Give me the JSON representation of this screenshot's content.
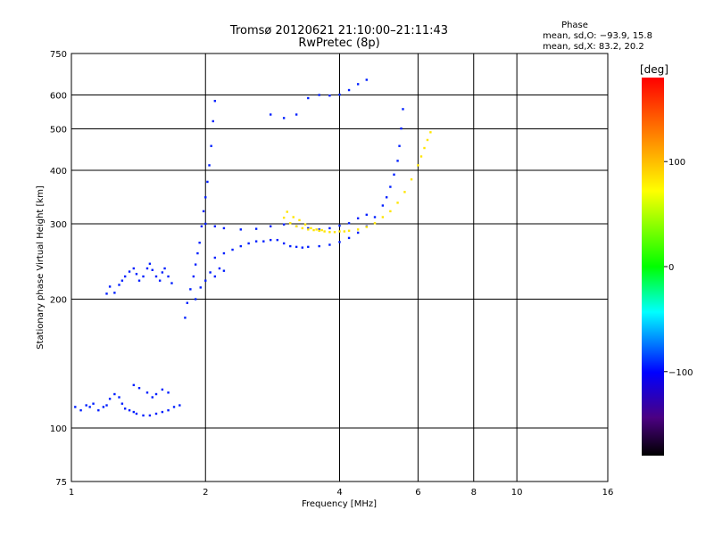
{
  "chart_data": {
    "type": "scatter",
    "title": "Tromsø 20120621 21:10:00–21:11:43",
    "subtitle": "RwPretec (8p)",
    "stats": {
      "heading": "Phase",
      "line1": "mean, sd,O: −93.9, 15.8",
      "line2": "mean, sd,X: 83.2, 20.2"
    },
    "xlabel": "Frequency [MHz]",
    "ylabel": "Stationary phase Virtual Height [km]",
    "x_scale": "log",
    "y_scale": "log",
    "xlim": [
      1,
      16
    ],
    "ylim": [
      75,
      750
    ],
    "x_ticks": [
      1,
      2,
      4,
      6,
      8,
      10,
      16
    ],
    "x_tick_labels": [
      "1",
      "2",
      "4",
      "6",
      "8",
      "10",
      "16"
    ],
    "x_gridlines": [
      2,
      4,
      6,
      8,
      10
    ],
    "y_ticks": [
      75,
      100,
      200,
      300,
      400,
      500,
      600,
      750
    ],
    "y_tick_labels": [
      "75",
      "100",
      "200",
      "300",
      "400",
      "500",
      "600",
      "750"
    ],
    "y_gridlines": [
      100,
      200,
      300,
      400,
      500,
      600
    ],
    "colorbar": {
      "label": "[deg]",
      "range": [
        -180,
        180
      ],
      "ticks": [
        -100,
        0,
        100
      ],
      "tick_labels": [
        "−100",
        "0",
        "100"
      ]
    },
    "series": [
      {
        "name": "O",
        "mean_phase": -93.9,
        "points": [
          [
            1.02,
            112
          ],
          [
            1.05,
            110
          ],
          [
            1.08,
            113
          ],
          [
            1.1,
            112
          ],
          [
            1.12,
            114
          ],
          [
            1.15,
            110
          ],
          [
            1.18,
            112
          ],
          [
            1.2,
            113
          ],
          [
            1.22,
            117
          ],
          [
            1.25,
            120
          ],
          [
            1.28,
            118
          ],
          [
            1.3,
            114
          ],
          [
            1.32,
            111
          ],
          [
            1.35,
            110
          ],
          [
            1.38,
            109
          ],
          [
            1.4,
            108
          ],
          [
            1.45,
            107
          ],
          [
            1.5,
            107
          ],
          [
            1.55,
            108
          ],
          [
            1.6,
            109
          ],
          [
            1.65,
            110
          ],
          [
            1.7,
            112
          ],
          [
            1.75,
            113
          ],
          [
            1.38,
            126
          ],
          [
            1.42,
            124
          ],
          [
            1.48,
            121
          ],
          [
            1.52,
            118
          ],
          [
            1.55,
            120
          ],
          [
            1.6,
            123
          ],
          [
            1.65,
            121
          ],
          [
            1.2,
            206
          ],
          [
            1.22,
            214
          ],
          [
            1.25,
            207
          ],
          [
            1.28,
            216
          ],
          [
            1.3,
            221
          ],
          [
            1.32,
            226
          ],
          [
            1.35,
            232
          ],
          [
            1.38,
            236
          ],
          [
            1.4,
            229
          ],
          [
            1.42,
            221
          ],
          [
            1.45,
            226
          ],
          [
            1.48,
            236
          ],
          [
            1.5,
            242
          ],
          [
            1.52,
            234
          ],
          [
            1.55,
            226
          ],
          [
            1.58,
            221
          ],
          [
            1.6,
            231
          ],
          [
            1.62,
            236
          ],
          [
            1.65,
            226
          ],
          [
            1.68,
            218
          ],
          [
            1.8,
            181
          ],
          [
            1.82,
            196
          ],
          [
            1.85,
            211
          ],
          [
            1.88,
            226
          ],
          [
            1.9,
            241
          ],
          [
            1.92,
            256
          ],
          [
            1.94,
            271
          ],
          [
            1.96,
            296
          ],
          [
            1.98,
            321
          ],
          [
            2.0,
            346
          ],
          [
            2.02,
            376
          ],
          [
            2.04,
            411
          ],
          [
            2.06,
            456
          ],
          [
            2.08,
            521
          ],
          [
            2.1,
            581
          ],
          [
            1.9,
            200
          ],
          [
            1.95,
            213
          ],
          [
            2.0,
            221
          ],
          [
            2.05,
            231
          ],
          [
            2.1,
            226
          ],
          [
            2.15,
            236
          ],
          [
            2.2,
            233
          ],
          [
            2.1,
            250
          ],
          [
            2.2,
            256
          ],
          [
            2.3,
            261
          ],
          [
            2.4,
            266
          ],
          [
            2.5,
            270
          ],
          [
            2.6,
            273
          ],
          [
            2.7,
            273
          ],
          [
            2.8,
            275
          ],
          [
            2.9,
            275
          ],
          [
            3.0,
            270
          ],
          [
            3.1,
            266
          ],
          [
            3.2,
            265
          ],
          [
            3.3,
            264
          ],
          [
            3.4,
            265
          ],
          [
            3.6,
            266
          ],
          [
            3.8,
            268
          ],
          [
            4.0,
            272
          ],
          [
            4.2,
            278
          ],
          [
            4.4,
            286
          ],
          [
            4.6,
            296
          ],
          [
            4.8,
            311
          ],
          [
            5.0,
            331
          ],
          [
            5.1,
            346
          ],
          [
            5.2,
            366
          ],
          [
            5.3,
            391
          ],
          [
            5.4,
            421
          ],
          [
            5.45,
            456
          ],
          [
            5.5,
            501
          ],
          [
            5.55,
            556
          ],
          [
            2.0,
            300
          ],
          [
            2.1,
            296
          ],
          [
            2.2,
            293
          ],
          [
            2.4,
            291
          ],
          [
            2.6,
            292
          ],
          [
            2.8,
            296
          ],
          [
            3.0,
            299
          ],
          [
            3.2,
            296
          ],
          [
            3.4,
            293
          ],
          [
            3.6,
            291
          ],
          [
            3.8,
            293
          ],
          [
            4.0,
            297
          ],
          [
            4.2,
            301
          ],
          [
            4.4,
            309
          ],
          [
            4.6,
            315
          ],
          [
            2.8,
            540
          ],
          [
            3.0,
            530
          ],
          [
            3.2,
            540
          ],
          [
            3.4,
            590
          ],
          [
            3.6,
            600
          ],
          [
            3.8,
            598
          ],
          [
            4.0,
            601
          ],
          [
            4.2,
            616
          ],
          [
            4.4,
            636
          ],
          [
            4.6,
            651
          ]
        ]
      },
      {
        "name": "X",
        "mean_phase": 83.2,
        "points": [
          [
            3.0,
            310
          ],
          [
            3.1,
            301
          ],
          [
            3.2,
            296
          ],
          [
            3.3,
            293
          ],
          [
            3.4,
            291
          ],
          [
            3.5,
            290
          ],
          [
            3.6,
            289
          ],
          [
            3.7,
            288
          ],
          [
            3.8,
            287
          ],
          [
            3.9,
            287
          ],
          [
            4.0,
            288
          ],
          [
            4.1,
            288
          ],
          [
            4.2,
            289
          ],
          [
            4.4,
            291
          ],
          [
            4.6,
            295
          ],
          [
            4.8,
            301
          ],
          [
            5.0,
            311
          ],
          [
            5.2,
            321
          ],
          [
            5.4,
            336
          ],
          [
            5.6,
            356
          ],
          [
            5.8,
            381
          ],
          [
            6.0,
            411
          ],
          [
            6.1,
            431
          ],
          [
            6.2,
            451
          ],
          [
            6.3,
            471
          ],
          [
            6.4,
            491
          ],
          [
            3.05,
            320
          ],
          [
            3.15,
            311
          ],
          [
            3.25,
            306
          ],
          [
            3.35,
            299
          ],
          [
            3.45,
            293
          ],
          [
            3.55,
            291
          ],
          [
            3.65,
            290
          ]
        ]
      }
    ]
  }
}
